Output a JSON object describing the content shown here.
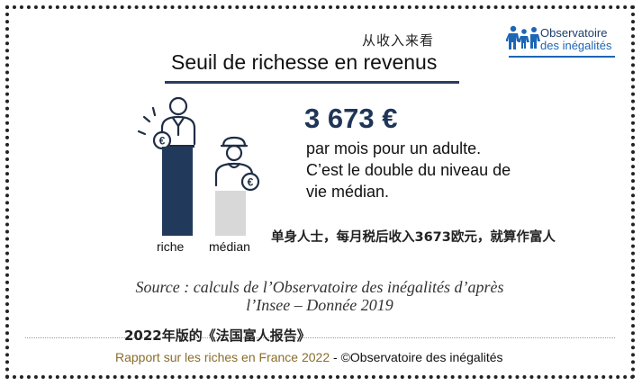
{
  "cn_caption_top": "从收入来看",
  "title": "Seuil de richesse en revenus",
  "logo": {
    "line1": "Observatoire",
    "line2": "des inégalités"
  },
  "amount": "3 673 €",
  "description": "par mois pour un adulte. C’est le double du niveau de vie médian.",
  "cn_translation": "单身人士，每月税后收入3673欧元，就算作富人",
  "labels": {
    "riche": "riche",
    "median": "médian"
  },
  "icons": {
    "euro": "€"
  },
  "source": "Source : calculs de l’Observatoire des inégalités d’après l’Insee – Donnée 2019",
  "cn_caption_bottom": "2022年版的《法国富人报告》",
  "footer": {
    "report": "Rapport sur les riches en France 2022",
    "separator": " - ",
    "copyright": "©Observatoire des inégalités"
  },
  "colors": {
    "navy": "#213a5c",
    "grey": "#d8d8d8",
    "accent_gold": "#8a6d2b",
    "logo_blue": "#1c66b5"
  }
}
